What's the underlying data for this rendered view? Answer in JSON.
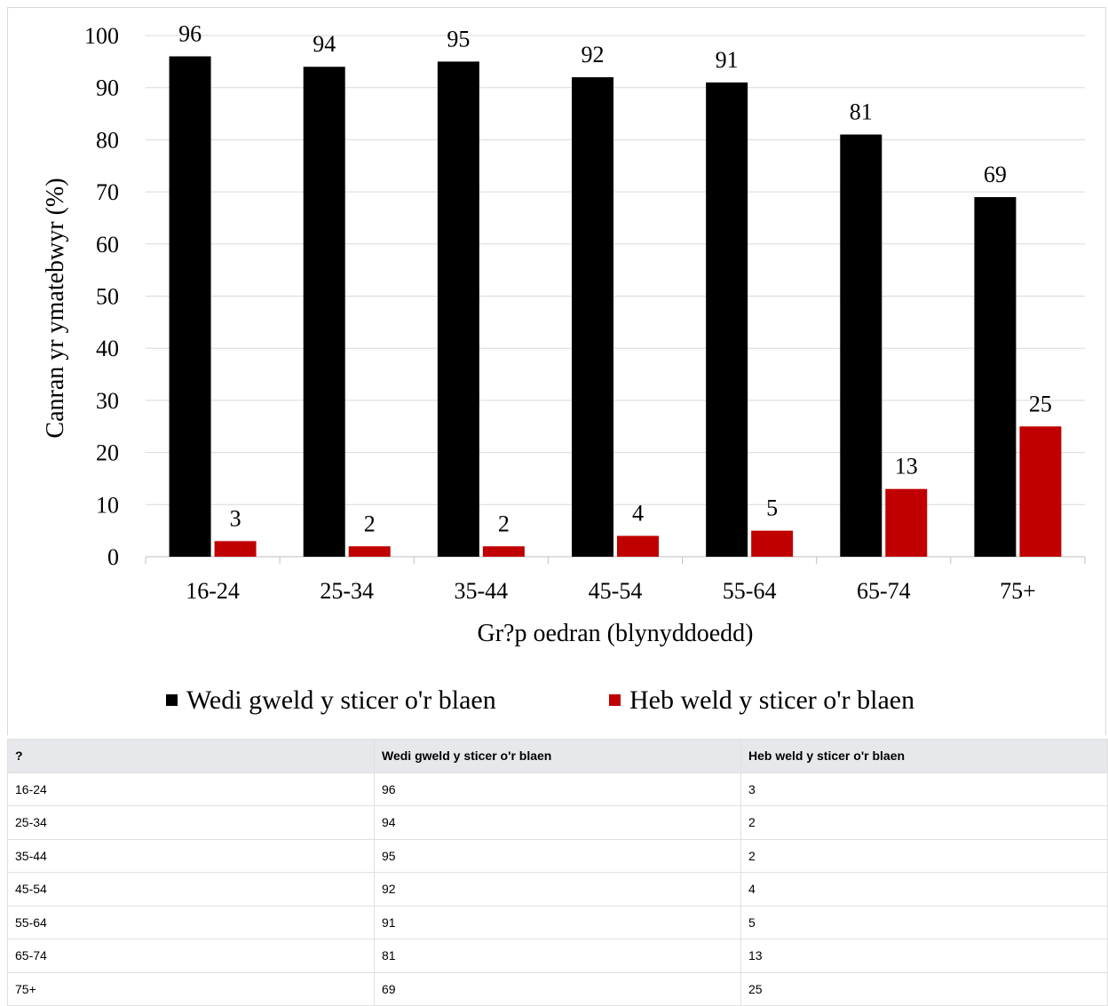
{
  "chart_data": {
    "type": "bar",
    "categories": [
      "16-24",
      "25-34",
      "35-44",
      "45-54",
      "55-64",
      "65-74",
      "75+"
    ],
    "series": [
      {
        "name": "Wedi gweld y sticer o'r blaen",
        "color": "#000000",
        "values": [
          96,
          94,
          95,
          92,
          91,
          81,
          69
        ]
      },
      {
        "name": "Heb weld y sticer o'r blaen",
        "color": "#c00000",
        "values": [
          3,
          2,
          2,
          4,
          5,
          13,
          25
        ]
      }
    ],
    "data_labels": {
      "Wedi gweld y sticer o'r blaen": [
        "96",
        "94",
        "95",
        "92",
        "91",
        "81",
        "69"
      ],
      "Heb weld y sticer o'r blaen": [
        "3",
        "2",
        "2",
        "4",
        "5",
        "13",
        "25"
      ]
    },
    "xlabel": "Gr?p oedran (blynyddoedd)",
    "ylabel": "Canran yr ymatebwyr (%)",
    "ylim": [
      0,
      100
    ],
    "yticks": [
      0,
      10,
      20,
      30,
      40,
      50,
      60,
      70,
      80,
      90,
      100
    ],
    "grid": true,
    "legend_position": "bottom"
  },
  "table": {
    "headers": [
      "?",
      "Wedi gweld y sticer o'r blaen",
      "Heb weld y sticer o'r blaen"
    ],
    "rows": [
      [
        "16-24",
        "96",
        "3"
      ],
      [
        "25-34",
        "94",
        "2"
      ],
      [
        "35-44",
        "95",
        "2"
      ],
      [
        "45-54",
        "92",
        "4"
      ],
      [
        "55-64",
        "91",
        "5"
      ],
      [
        "65-74",
        "81",
        "13"
      ],
      [
        "75+",
        "69",
        "25"
      ]
    ]
  }
}
